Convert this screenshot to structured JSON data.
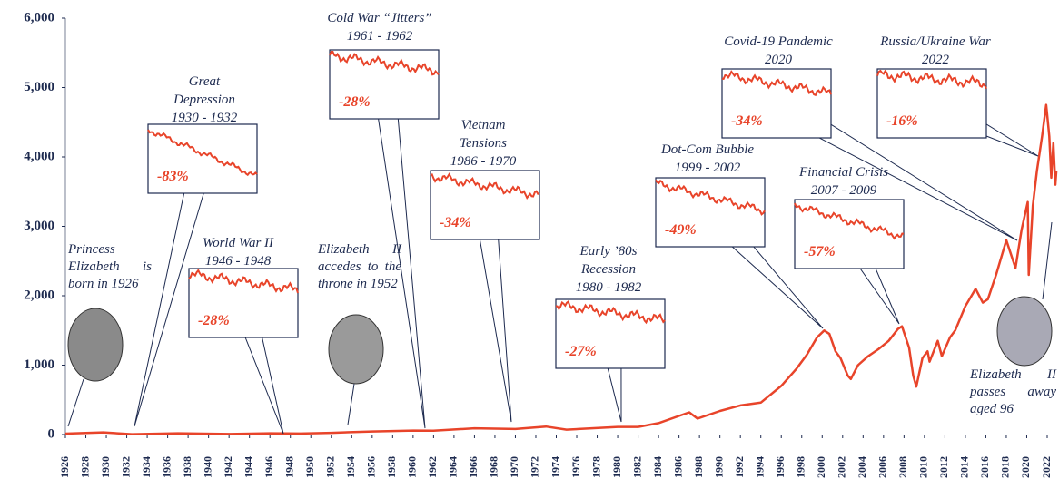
{
  "chart_data": {
    "type": "line",
    "ylim": [
      0,
      6000
    ],
    "yticks": [
      0,
      {
        "value": 1000,
        "label": "1,000"
      },
      {
        "value": 2000,
        "label": "2,000"
      },
      {
        "value": 3000,
        "label": "3,000"
      },
      {
        "value": 4000,
        "label": "4,000"
      },
      {
        "value": 5000,
        "label": "5,000"
      },
      {
        "value": 6000,
        "label": "6,000"
      }
    ],
    "xlim": [
      1926,
      2023
    ],
    "xticks": [
      1926,
      1928,
      1930,
      1932,
      1934,
      1936,
      1938,
      1940,
      1942,
      1944,
      1946,
      1948,
      1950,
      1952,
      1954,
      1956,
      1958,
      1960,
      1962,
      1964,
      1966,
      1968,
      1970,
      1972,
      1974,
      1976,
      1978,
      1980,
      1982,
      1984,
      1986,
      1988,
      1990,
      1992,
      1994,
      1996,
      1998,
      2000,
      2002,
      2004,
      2006,
      2008,
      2010,
      2012,
      2014,
      2016,
      2018,
      2020,
      2022
    ],
    "series": [
      {
        "color": "#e8442a",
        "x": [
          1926,
          1928,
          1929.7,
          1932.5,
          1937,
          1942,
          1946,
          1949,
          1952,
          1956,
          1960,
          1962,
          1966,
          1970,
          1973,
          1975,
          1980,
          1982,
          1984,
          1987,
          1987.8,
          1990,
          1992,
          1994,
          1996,
          1997.5,
          1998.5,
          1999.5,
          2000.2,
          2000.7,
          2001.3,
          2001.8,
          2002.5,
          2002.8,
          2003.5,
          2004.5,
          2005.5,
          2006.5,
          2007.4,
          2007.8,
          2008.5,
          2008.9,
          2009.2,
          2009.8,
          2010.3,
          2010.5,
          2011.3,
          2011.7,
          2012.5,
          2013,
          2014,
          2015,
          2015.7,
          2016.2,
          2017,
          2018,
          2018.9,
          2019.5,
          2020.1,
          2020.2,
          2020.6,
          2021,
          2021.5,
          2021.9,
          2022.2,
          2022.4,
          2022.6,
          2022.8,
          2022.9
        ],
        "values": [
          13,
          24,
          31,
          5,
          18,
          8,
          18,
          15,
          25,
          45,
          58,
          55,
          90,
          80,
          115,
          70,
          110,
          110,
          165,
          320,
          230,
          340,
          420,
          460,
          700,
          950,
          1150,
          1400,
          1500,
          1450,
          1200,
          1100,
          850,
          800,
          1000,
          1130,
          1230,
          1350,
          1520,
          1560,
          1250,
          850,
          690,
          1100,
          1200,
          1050,
          1350,
          1130,
          1400,
          1500,
          1850,
          2100,
          1900,
          1950,
          2300,
          2800,
          2400,
          2950,
          3350,
          2300,
          3300,
          3800,
          4300,
          4750,
          4300,
          3700,
          4200,
          3600,
          3800
        ]
      }
    ],
    "annotations": [
      {
        "title": "Great Depression",
        "period": "1930 - 1932",
        "value": -83,
        "value_label": "-83%"
      },
      {
        "title": "World War II",
        "period": "1946 - 1948",
        "value": -28,
        "value_label": "-28%"
      },
      {
        "title": "Cold War “Jitters”",
        "period": "1961 - 1962",
        "value": -28,
        "value_label": "-28%"
      },
      {
        "title": "Vietnam Tensions",
        "period": "1986 - 1970",
        "value": -34,
        "value_label": "-34%"
      },
      {
        "title": "Early ’80s Recession",
        "period": "1980 - 1982",
        "value": -27,
        "value_label": "-27%"
      },
      {
        "title": "Dot-Com Bubble",
        "period": "1999 - 2002",
        "value": -49,
        "value_label": "-49%"
      },
      {
        "title": "Financial Crisis",
        "period": "2007 - 2009",
        "value": -57,
        "value_label": "-57%"
      },
      {
        "title": "Covid-19 Pandemic",
        "period": "2020",
        "value": -34,
        "value_label": "-34%"
      },
      {
        "title": "Russia/Ukraine War",
        "period": "2022",
        "value": -16,
        "value_label": "-16%"
      }
    ],
    "notes": [
      "Princess Elizabeth is born in 1926",
      "Elizabeth II accedes to the throne in 1952",
      "Elizabeth II passes away aged 96"
    ]
  }
}
